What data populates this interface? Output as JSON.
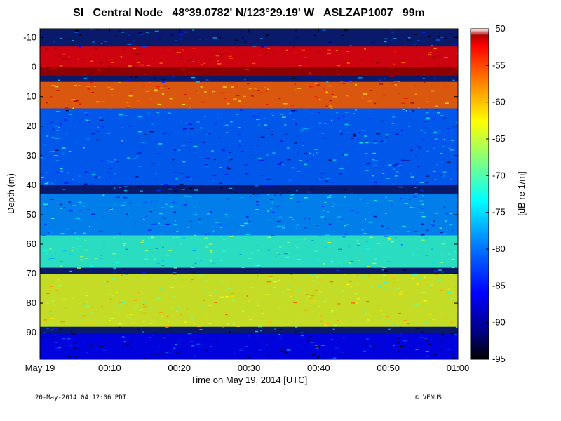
{
  "title": "SI   Central Node   48°39.0782' N/123°29.19' W   ASLZAP1007   99m",
  "footer": {
    "timestamp": "20-May-2014 04:12:06 PDT",
    "credit": "© VENUS"
  },
  "chart_data": {
    "type": "heatmap",
    "xlabel": "Time on May 19, 2014 [UTC]",
    "ylabel": "Depth (m)",
    "x_ticks": [
      "May 19",
      "00:10",
      "00:20",
      "00:30",
      "00:40",
      "00:50",
      "01:00"
    ],
    "x_range_minutes": [
      0,
      60
    ],
    "y_ticks": [
      -10,
      0,
      10,
      20,
      30,
      40,
      50,
      60,
      70,
      80,
      90
    ],
    "ylim": [
      -13,
      99
    ],
    "y_reversed": true,
    "colorbar": {
      "label": "[dB re 1/m]",
      "range": [
        -95,
        -50
      ],
      "ticks": [
        -50,
        -55,
        -60,
        -65,
        -70,
        -75,
        -80,
        -85,
        -90,
        -95
      ],
      "colormap": "jet"
    },
    "layers": [
      {
        "feature": "strong surface scattering band",
        "depth_from": -7,
        "depth_to": 3,
        "level_db": -55
      },
      {
        "feature": "near-surface bright line",
        "depth_from": 0,
        "depth_to": 3,
        "level_db": -50
      },
      {
        "feature": "mixed scattering layer",
        "depth_from": 5,
        "depth_to": 14,
        "level_db": -60
      },
      {
        "feature": "scattered targets",
        "depth_from": 14,
        "depth_to": 40,
        "level_db": -85
      },
      {
        "feature": "weak layer",
        "depth_from": 43,
        "depth_to": 57,
        "level_db": -83
      },
      {
        "feature": "moderate layer",
        "depth_from": 57,
        "depth_to": 68,
        "level_db": -76
      },
      {
        "feature": "moderate-strong layer",
        "depth_from": 70,
        "depth_to": 88,
        "level_db": -68
      },
      {
        "feature": "bottom / low return",
        "depth_from": 90,
        "depth_to": 99,
        "level_db": -90
      }
    ]
  }
}
